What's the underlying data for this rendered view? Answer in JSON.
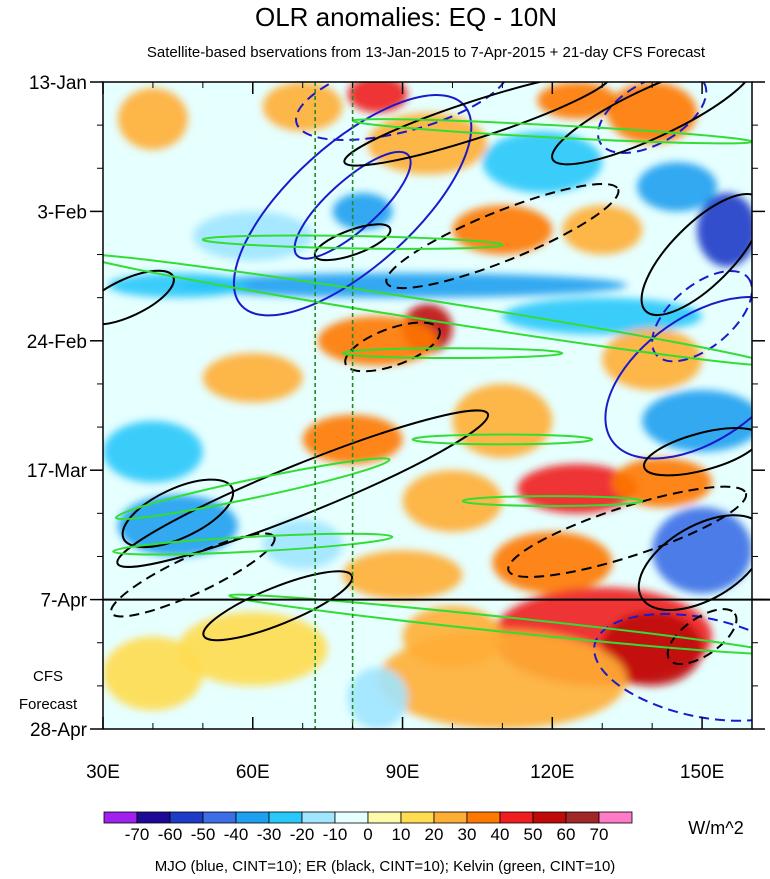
{
  "chart_data": {
    "type": "heatmap",
    "title": "OLR anomalies: EQ - 10N",
    "subtitle": "Satellite-based bservations from 13-Jan-2015 to 7-Apr-2015 + 21-day CFS Forecast",
    "x_ticks": [
      {
        "value": 30,
        "label": "30E"
      },
      {
        "value": 60,
        "label": "60E"
      },
      {
        "value": 90,
        "label": "90E"
      },
      {
        "value": 120,
        "label": "120E"
      },
      {
        "value": 150,
        "label": "150E"
      }
    ],
    "xlim": [
      30,
      160
    ],
    "y_ticks": [
      {
        "day": 0,
        "label": "13-Jan"
      },
      {
        "day": 21,
        "label": "3-Feb"
      },
      {
        "day": 42,
        "label": "24-Feb"
      },
      {
        "day": 63,
        "label": "17-Mar"
      },
      {
        "day": 84,
        "label": "7-Apr"
      },
      {
        "day": 105,
        "label": "28-Apr"
      }
    ],
    "ylim_days": [
      0,
      105
    ],
    "observation_end_day": 84,
    "forecast_label": [
      "CFS",
      "Forecast"
    ],
    "reference_longitudes": [
      72.5,
      80
    ],
    "colorbar": {
      "levels": [
        -70,
        -60,
        -50,
        -40,
        -30,
        -20,
        -10,
        0,
        10,
        20,
        30,
        40,
        50,
        60,
        70
      ],
      "labels": [
        "-70",
        "-60",
        "-50",
        "-40",
        "-30",
        "-20",
        "-10",
        "0",
        "10",
        "20",
        "30",
        "40",
        "50",
        "60",
        "70"
      ],
      "colors": [
        "#a020f0",
        "#1e0a96",
        "#1e3cc8",
        "#3c6ee6",
        "#1ea0f0",
        "#28c8fa",
        "#a0e6ff",
        "#e6ffff",
        "#fffaaa",
        "#ffdc50",
        "#ffae35",
        "#ff7800",
        "#f01e1e",
        "#c00a0a",
        "#a02828",
        "#ff7ac8"
      ],
      "units": "W/m^2"
    },
    "contour_legend": "MJO (blue, CINT=10); ER (black, CINT=10); Kelvin (green, CINT=10)",
    "blobs": [
      {
        "lon": 85,
        "day": 2,
        "rlon": 6,
        "rday": 3,
        "value": 45
      },
      {
        "lon": 125,
        "day": 3,
        "rlon": 8,
        "rday": 3,
        "value": 35
      },
      {
        "lon": 140,
        "day": 5,
        "rlon": 9,
        "rday": 5,
        "value": 30
      },
      {
        "lon": 70,
        "day": 4,
        "rlon": 8,
        "rday": 4,
        "value": 20
      },
      {
        "lon": 40,
        "day": 6,
        "rlon": 7,
        "rday": 5,
        "value": 20
      },
      {
        "lon": 95,
        "day": 10,
        "rlon": 12,
        "rday": 5,
        "value": 20
      },
      {
        "lon": 118,
        "day": 13,
        "rlon": 12,
        "rday": 5,
        "value": -30
      },
      {
        "lon": 145,
        "day": 17,
        "rlon": 8,
        "rday": 4,
        "value": -40
      },
      {
        "lon": 155,
        "day": 24,
        "rlon": 6,
        "rday": 6,
        "value": -60
      },
      {
        "lon": 82,
        "day": 21,
        "rlon": 6,
        "rday": 3,
        "value": -40
      },
      {
        "lon": 110,
        "day": 24,
        "rlon": 10,
        "rday": 4,
        "value": 30
      },
      {
        "lon": 130,
        "day": 24,
        "rlon": 8,
        "rday": 4,
        "value": 25
      },
      {
        "lon": 60,
        "day": 25,
        "rlon": 12,
        "rday": 4,
        "value": -20
      },
      {
        "lon": 90,
        "day": 33,
        "rlon": 45,
        "rday": 2,
        "value": -40
      },
      {
        "lon": 45,
        "day": 33,
        "rlon": 14,
        "rday": 2,
        "value": -30
      },
      {
        "lon": 130,
        "day": 38,
        "rlon": 20,
        "rday": 3,
        "value": -30
      },
      {
        "lon": 95,
        "day": 40,
        "rlon": 5,
        "rday": 4,
        "value": 50
      },
      {
        "lon": 85,
        "day": 42,
        "rlon": 12,
        "rday": 4,
        "value": 30
      },
      {
        "lon": 140,
        "day": 45,
        "rlon": 10,
        "rday": 5,
        "value": 25
      },
      {
        "lon": 60,
        "day": 48,
        "rlon": 10,
        "rday": 4,
        "value": 20
      },
      {
        "lon": 150,
        "day": 55,
        "rlon": 12,
        "rday": 5,
        "value": -40
      },
      {
        "lon": 110,
        "day": 55,
        "rlon": 10,
        "rday": 6,
        "value": 25
      },
      {
        "lon": 80,
        "day": 58,
        "rlon": 10,
        "rday": 4,
        "value": 30
      },
      {
        "lon": 40,
        "day": 60,
        "rlon": 10,
        "rday": 5,
        "value": -30
      },
      {
        "lon": 125,
        "day": 66,
        "rlon": 12,
        "rday": 4,
        "value": 40
      },
      {
        "lon": 142,
        "day": 65,
        "rlon": 10,
        "rday": 4,
        "value": 35
      },
      {
        "lon": 100,
        "day": 68,
        "rlon": 10,
        "rday": 5,
        "value": 25
      },
      {
        "lon": 45,
        "day": 72,
        "rlon": 12,
        "rday": 5,
        "value": -40
      },
      {
        "lon": 70,
        "day": 75,
        "rlon": 8,
        "rday": 4,
        "value": -20
      },
      {
        "lon": 150,
        "day": 76,
        "rlon": 10,
        "rday": 7,
        "value": -50
      },
      {
        "lon": 120,
        "day": 78,
        "rlon": 12,
        "rday": 5,
        "value": 30
      },
      {
        "lon": 90,
        "day": 80,
        "rlon": 12,
        "rday": 4,
        "value": 20
      },
      {
        "lon": 130,
        "day": 90,
        "rlon": 22,
        "rday": 8,
        "value": 40
      },
      {
        "lon": 140,
        "day": 92,
        "rlon": 10,
        "rday": 6,
        "value": 55
      },
      {
        "lon": 110,
        "day": 97,
        "rlon": 25,
        "rday": 8,
        "value": 25
      },
      {
        "lon": 60,
        "day": 92,
        "rlon": 15,
        "rday": 6,
        "value": 15
      },
      {
        "lon": 85,
        "day": 100,
        "rlon": 6,
        "rday": 5,
        "value": -20
      },
      {
        "lon": 40,
        "day": 96,
        "rlon": 10,
        "rday": 6,
        "value": 10
      },
      {
        "lon": 100,
        "day": 90,
        "rlon": 10,
        "rday": 5,
        "value": 20
      }
    ],
    "contours": [
      {
        "kind": "MJO",
        "sign": "neg",
        "color": "#1a1acc",
        "dashed": false,
        "cx": 80,
        "cy": 20,
        "rx": 30,
        "ry": 10,
        "angle": -42
      },
      {
        "kind": "MJO",
        "sign": "neg",
        "color": "#1a1acc",
        "dashed": false,
        "cx": 80,
        "cy": 20,
        "rx": 15,
        "ry": 4,
        "angle": -42
      },
      {
        "kind": "MJO",
        "sign": "neg",
        "color": "#1a1acc",
        "dashed": false,
        "cx": 150,
        "cy": 48,
        "rx": 22,
        "ry": 10,
        "angle": -35
      },
      {
        "kind": "MJO",
        "sign": "pos",
        "color": "#1a1acc",
        "dashed": true,
        "cx": 90,
        "cy": 2,
        "rx": 22,
        "ry": 6,
        "angle": -15
      },
      {
        "kind": "MJO",
        "sign": "pos",
        "color": "#1a1acc",
        "dashed": true,
        "cx": 140,
        "cy": 5,
        "rx": 12,
        "ry": 5,
        "angle": -30
      },
      {
        "kind": "MJO",
        "sign": "pos",
        "color": "#1a1acc",
        "dashed": true,
        "cx": 150,
        "cy": 38,
        "rx": 12,
        "ry": 5,
        "angle": -40
      },
      {
        "kind": "MJO",
        "sign": "pos",
        "color": "#1a1acc",
        "dashed": true,
        "cx": 150,
        "cy": 95,
        "rx": 22,
        "ry": 8,
        "angle": 12
      },
      {
        "kind": "ER",
        "sign": "neg",
        "color": "#000000",
        "dashed": false,
        "cx": 105,
        "cy": 6,
        "rx": 28,
        "ry": 3,
        "angle": -18
      },
      {
        "kind": "ER",
        "sign": "neg",
        "color": "#000000",
        "dashed": false,
        "cx": 140,
        "cy": 5,
        "rx": 22,
        "ry": 4,
        "angle": -25
      },
      {
        "kind": "ER",
        "sign": "neg",
        "color": "#000000",
        "dashed": false,
        "cx": 80,
        "cy": 26,
        "rx": 8,
        "ry": 2,
        "angle": -20
      },
      {
        "kind": "ER",
        "sign": "neg",
        "color": "#000000",
        "dashed": false,
        "cx": 150,
        "cy": 28,
        "rx": 16,
        "ry": 5,
        "angle": -45
      },
      {
        "kind": "ER",
        "sign": "neg",
        "color": "#000000",
        "dashed": false,
        "cx": 35,
        "cy": 35,
        "rx": 10,
        "ry": 3,
        "angle": -25
      },
      {
        "kind": "ER",
        "sign": "neg",
        "color": "#000000",
        "dashed": false,
        "cx": 70,
        "cy": 66,
        "rx": 40,
        "ry": 4,
        "angle": -22
      },
      {
        "kind": "ER",
        "sign": "neg",
        "color": "#000000",
        "dashed": false,
        "cx": 45,
        "cy": 70,
        "rx": 12,
        "ry": 4,
        "angle": -25
      },
      {
        "kind": "ER",
        "sign": "neg",
        "color": "#000000",
        "dashed": false,
        "cx": 150,
        "cy": 60,
        "rx": 12,
        "ry": 3,
        "angle": -15
      },
      {
        "kind": "ER",
        "sign": "neg",
        "color": "#000000",
        "dashed": false,
        "cx": 150,
        "cy": 78,
        "rx": 14,
        "ry": 6,
        "angle": -30
      },
      {
        "kind": "ER",
        "sign": "neg",
        "color": "#000000",
        "dashed": false,
        "cx": 65,
        "cy": 85,
        "rx": 16,
        "ry": 3,
        "angle": -22
      },
      {
        "kind": "ER",
        "sign": "pos",
        "color": "#000000",
        "dashed": true,
        "cx": 110,
        "cy": 25,
        "rx": 25,
        "ry": 4,
        "angle": -22
      },
      {
        "kind": "ER",
        "sign": "pos",
        "color": "#000000",
        "dashed": true,
        "cx": 88,
        "cy": 43,
        "rx": 10,
        "ry": 3,
        "angle": -20
      },
      {
        "kind": "ER",
        "sign": "pos",
        "color": "#000000",
        "dashed": true,
        "cx": 135,
        "cy": 73,
        "rx": 25,
        "ry": 4,
        "angle": -18
      },
      {
        "kind": "ER",
        "sign": "pos",
        "color": "#000000",
        "dashed": true,
        "cx": 48,
        "cy": 80,
        "rx": 18,
        "ry": 3,
        "angle": -25
      },
      {
        "kind": "ER",
        "sign": "pos",
        "color": "#000000",
        "dashed": true,
        "cx": 150,
        "cy": 90,
        "rx": 8,
        "ry": 3,
        "angle": -35
      },
      {
        "kind": "Kelvin",
        "sign": "neg",
        "color": "#33dd33",
        "dashed": false,
        "cx": 120,
        "cy": 8,
        "rx": 40,
        "ry": 1,
        "angle": 3
      },
      {
        "kind": "Kelvin",
        "sign": "neg",
        "color": "#33dd33",
        "dashed": false,
        "cx": 95,
        "cy": 37,
        "rx": 70,
        "ry": 1.6,
        "angle": 9
      },
      {
        "kind": "Kelvin",
        "sign": "neg",
        "color": "#33dd33",
        "dashed": false,
        "cx": 80,
        "cy": 26,
        "rx": 30,
        "ry": 1,
        "angle": 1
      },
      {
        "kind": "Kelvin",
        "sign": "neg",
        "color": "#33dd33",
        "dashed": false,
        "cx": 60,
        "cy": 66,
        "rx": 28,
        "ry": 1.5,
        "angle": -12
      },
      {
        "kind": "Kelvin",
        "sign": "neg",
        "color": "#33dd33",
        "dashed": false,
        "cx": 60,
        "cy": 75,
        "rx": 28,
        "ry": 1.2,
        "angle": -3
      },
      {
        "kind": "Kelvin",
        "sign": "neg",
        "color": "#33dd33",
        "dashed": false,
        "cx": 110,
        "cy": 88,
        "rx": 55,
        "ry": 1.2,
        "angle": 6
      },
      {
        "kind": "Kelvin",
        "sign": "neg",
        "color": "#33dd33",
        "dashed": false,
        "cx": 110,
        "cy": 58,
        "rx": 18,
        "ry": 0.8,
        "angle": 0
      },
      {
        "kind": "Kelvin",
        "sign": "neg",
        "color": "#33dd33",
        "dashed": false,
        "cx": 100,
        "cy": 44,
        "rx": 22,
        "ry": 0.8,
        "angle": 0
      },
      {
        "kind": "Kelvin",
        "sign": "neg",
        "color": "#33dd33",
        "dashed": false,
        "cx": 120,
        "cy": 68,
        "rx": 18,
        "ry": 0.8,
        "angle": 0
      }
    ]
  }
}
